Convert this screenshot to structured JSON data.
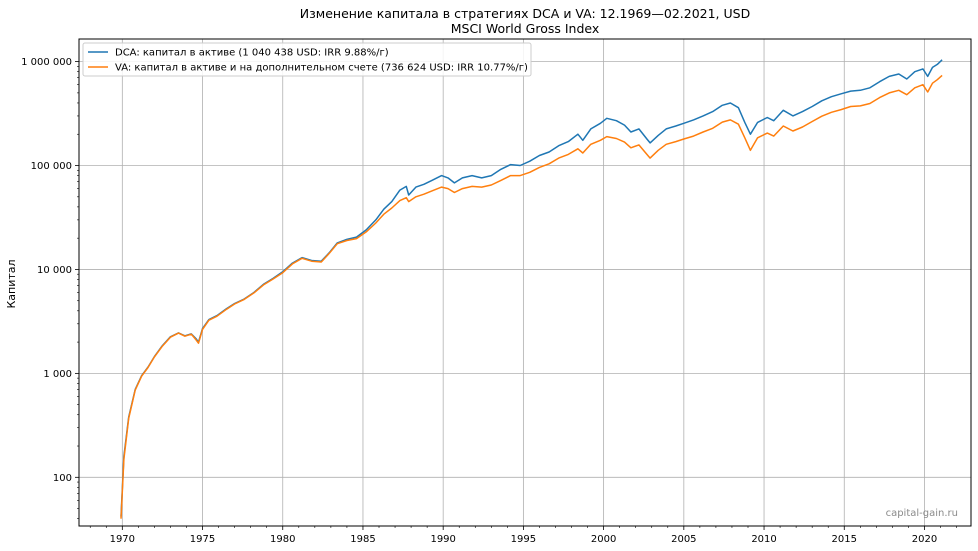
{
  "chart_data": {
    "type": "line",
    "title": "Изменение капитала в стратегиях DCA и VA: 12.1969—02.2021, USD",
    "subtitle": "MSCI World Gross Index",
    "ylabel": "Капитал",
    "xlabel": "",
    "yscale": "log",
    "xlim": [
      1967.3,
      2022.9
    ],
    "ylim": [
      34,
      1650000
    ],
    "x_ticks": [
      1970,
      1975,
      1980,
      1985,
      1990,
      1995,
      2000,
      2005,
      2010,
      2015,
      2020
    ],
    "x_tick_labels": [
      "1970",
      "1975",
      "1980",
      "1985",
      "1990",
      "1995",
      "2000",
      "2005",
      "2010",
      "2015",
      "2020"
    ],
    "y_ticks": [
      100,
      1000,
      10000,
      100000,
      1000000
    ],
    "y_tick_labels": [
      "100",
      "1 000",
      "10 000",
      "100 000",
      "1 000 000"
    ],
    "grid": true,
    "legend_position": "top-left",
    "watermark": "capital-gain.ru",
    "series": [
      {
        "name": "DCA: капитал в активе (1 040 438 USD: IRR 9.88%/г)",
        "color": "#1f77b4",
        "points": [
          [
            1969.92,
            42
          ],
          [
            1970.1,
            160
          ],
          [
            1970.4,
            380
          ],
          [
            1970.8,
            700
          ],
          [
            1971.2,
            950
          ],
          [
            1971.6,
            1150
          ],
          [
            1972.0,
            1450
          ],
          [
            1972.5,
            1850
          ],
          [
            1973.0,
            2250
          ],
          [
            1973.5,
            2450
          ],
          [
            1973.9,
            2300
          ],
          [
            1974.3,
            2400
          ],
          [
            1974.6,
            2150
          ],
          [
            1974.75,
            2000
          ],
          [
            1975.0,
            2700
          ],
          [
            1975.4,
            3300
          ],
          [
            1975.9,
            3600
          ],
          [
            1976.5,
            4200
          ],
          [
            1977.0,
            4700
          ],
          [
            1977.6,
            5200
          ],
          [
            1978.2,
            6000
          ],
          [
            1978.8,
            7200
          ],
          [
            1979.4,
            8200
          ],
          [
            1980.0,
            9500
          ],
          [
            1980.6,
            11500
          ],
          [
            1981.2,
            13000
          ],
          [
            1981.8,
            12200
          ],
          [
            1982.4,
            12000
          ],
          [
            1982.9,
            14500
          ],
          [
            1983.4,
            18000
          ],
          [
            1984.0,
            19500
          ],
          [
            1984.6,
            20500
          ],
          [
            1985.2,
            24000
          ],
          [
            1985.8,
            30000
          ],
          [
            1986.3,
            38000
          ],
          [
            1986.8,
            45000
          ],
          [
            1987.3,
            58000
          ],
          [
            1987.7,
            63000
          ],
          [
            1987.85,
            52000
          ],
          [
            1988.3,
            62000
          ],
          [
            1988.8,
            66000
          ],
          [
            1989.3,
            72000
          ],
          [
            1989.9,
            80000
          ],
          [
            1990.3,
            76000
          ],
          [
            1990.7,
            68000
          ],
          [
            1991.2,
            76000
          ],
          [
            1991.8,
            80000
          ],
          [
            1992.4,
            76000
          ],
          [
            1993.0,
            80000
          ],
          [
            1993.6,
            92000
          ],
          [
            1994.2,
            102000
          ],
          [
            1994.8,
            100000
          ],
          [
            1995.4,
            110000
          ],
          [
            1996.0,
            125000
          ],
          [
            1996.6,
            135000
          ],
          [
            1997.2,
            155000
          ],
          [
            1997.8,
            170000
          ],
          [
            1998.4,
            200000
          ],
          [
            1998.7,
            175000
          ],
          [
            1999.2,
            225000
          ],
          [
            1999.8,
            255000
          ],
          [
            2000.2,
            285000
          ],
          [
            2000.8,
            270000
          ],
          [
            2001.3,
            245000
          ],
          [
            2001.7,
            210000
          ],
          [
            2002.2,
            225000
          ],
          [
            2002.7,
            180000
          ],
          [
            2002.9,
            165000
          ],
          [
            2003.4,
            195000
          ],
          [
            2003.9,
            225000
          ],
          [
            2004.5,
            240000
          ],
          [
            2005.0,
            255000
          ],
          [
            2005.6,
            275000
          ],
          [
            2006.2,
            300000
          ],
          [
            2006.8,
            330000
          ],
          [
            2007.4,
            380000
          ],
          [
            2007.9,
            400000
          ],
          [
            2008.4,
            360000
          ],
          [
            2008.8,
            260000
          ],
          [
            2009.15,
            200000
          ],
          [
            2009.6,
            260000
          ],
          [
            2010.2,
            290000
          ],
          [
            2010.6,
            270000
          ],
          [
            2011.2,
            340000
          ],
          [
            2011.8,
            300000
          ],
          [
            2012.4,
            330000
          ],
          [
            2013.0,
            370000
          ],
          [
            2013.6,
            420000
          ],
          [
            2014.2,
            460000
          ],
          [
            2014.8,
            490000
          ],
          [
            2015.4,
            520000
          ],
          [
            2016.0,
            530000
          ],
          [
            2016.6,
            560000
          ],
          [
            2017.2,
            640000
          ],
          [
            2017.8,
            720000
          ],
          [
            2018.4,
            760000
          ],
          [
            2018.9,
            680000
          ],
          [
            2019.4,
            800000
          ],
          [
            2019.9,
            850000
          ],
          [
            2020.2,
            720000
          ],
          [
            2020.5,
            880000
          ],
          [
            2020.8,
            940000
          ],
          [
            2021.1,
            1040438
          ]
        ]
      },
      {
        "name": "VA: капитал в активе и на дополнительном счете (736 624 USD: IRR 10.77%/г)",
        "color": "#ff7f0e",
        "points": [
          [
            1969.92,
            40
          ],
          [
            1970.1,
            150
          ],
          [
            1970.4,
            370
          ],
          [
            1970.8,
            690
          ],
          [
            1971.2,
            940
          ],
          [
            1971.6,
            1140
          ],
          [
            1972.0,
            1440
          ],
          [
            1972.5,
            1830
          ],
          [
            1973.0,
            2230
          ],
          [
            1973.5,
            2440
          ],
          [
            1973.9,
            2280
          ],
          [
            1974.3,
            2380
          ],
          [
            1974.6,
            2100
          ],
          [
            1974.75,
            1950
          ],
          [
            1975.0,
            2650
          ],
          [
            1975.4,
            3250
          ],
          [
            1975.9,
            3550
          ],
          [
            1976.5,
            4150
          ],
          [
            1977.0,
            4650
          ],
          [
            1977.6,
            5150
          ],
          [
            1978.2,
            5950
          ],
          [
            1978.8,
            7100
          ],
          [
            1979.4,
            8100
          ],
          [
            1980.0,
            9300
          ],
          [
            1980.6,
            11300
          ],
          [
            1981.2,
            12800
          ],
          [
            1981.8,
            12000
          ],
          [
            1982.4,
            11800
          ],
          [
            1982.9,
            14300
          ],
          [
            1983.4,
            17700
          ],
          [
            1984.0,
            19000
          ],
          [
            1984.6,
            19800
          ],
          [
            1985.2,
            23000
          ],
          [
            1985.8,
            28000
          ],
          [
            1986.3,
            34000
          ],
          [
            1986.8,
            39000
          ],
          [
            1987.3,
            46000
          ],
          [
            1987.7,
            49000
          ],
          [
            1987.85,
            45000
          ],
          [
            1988.3,
            50000
          ],
          [
            1988.8,
            53000
          ],
          [
            1989.3,
            57000
          ],
          [
            1989.9,
            62000
          ],
          [
            1990.3,
            60000
          ],
          [
            1990.7,
            55000
          ],
          [
            1991.2,
            60000
          ],
          [
            1991.8,
            63000
          ],
          [
            1992.4,
            62000
          ],
          [
            1993.0,
            65000
          ],
          [
            1993.6,
            72000
          ],
          [
            1994.2,
            80000
          ],
          [
            1994.8,
            80000
          ],
          [
            1995.4,
            86000
          ],
          [
            1996.0,
            96000
          ],
          [
            1996.6,
            104000
          ],
          [
            1997.2,
            118000
          ],
          [
            1997.8,
            128000
          ],
          [
            1998.4,
            145000
          ],
          [
            1998.7,
            132000
          ],
          [
            1999.2,
            160000
          ],
          [
            1999.8,
            175000
          ],
          [
            2000.2,
            190000
          ],
          [
            2000.8,
            182000
          ],
          [
            2001.3,
            168000
          ],
          [
            2001.7,
            148000
          ],
          [
            2002.2,
            158000
          ],
          [
            2002.7,
            128000
          ],
          [
            2002.9,
            118000
          ],
          [
            2003.4,
            140000
          ],
          [
            2003.9,
            160000
          ],
          [
            2004.5,
            170000
          ],
          [
            2005.0,
            180000
          ],
          [
            2005.6,
            192000
          ],
          [
            2006.2,
            210000
          ],
          [
            2006.8,
            228000
          ],
          [
            2007.4,
            262000
          ],
          [
            2007.9,
            275000
          ],
          [
            2008.4,
            250000
          ],
          [
            2008.8,
            185000
          ],
          [
            2009.15,
            140000
          ],
          [
            2009.6,
            185000
          ],
          [
            2010.2,
            205000
          ],
          [
            2010.6,
            192000
          ],
          [
            2011.2,
            240000
          ],
          [
            2011.8,
            215000
          ],
          [
            2012.4,
            235000
          ],
          [
            2013.0,
            265000
          ],
          [
            2013.6,
            298000
          ],
          [
            2014.2,
            325000
          ],
          [
            2014.8,
            345000
          ],
          [
            2015.4,
            370000
          ],
          [
            2016.0,
            375000
          ],
          [
            2016.6,
            395000
          ],
          [
            2017.2,
            450000
          ],
          [
            2017.8,
            500000
          ],
          [
            2018.4,
            530000
          ],
          [
            2018.9,
            480000
          ],
          [
            2019.4,
            560000
          ],
          [
            2019.9,
            600000
          ],
          [
            2020.2,
            510000
          ],
          [
            2020.5,
            620000
          ],
          [
            2020.8,
            670000
          ],
          [
            2021.1,
            736624
          ]
        ]
      }
    ]
  },
  "colors": {
    "axis": "#000000",
    "grid": "#b0b0b0",
    "background": "#ffffff"
  }
}
